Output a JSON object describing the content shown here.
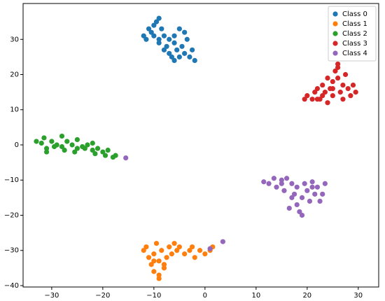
{
  "chart_data": {
    "type": "scatter",
    "xlim": [
      -35.6,
      34
    ],
    "ylim": [
      -40.4,
      40.2
    ],
    "xticks": [
      {
        "value": -30,
        "label": "−30"
      },
      {
        "value": -20,
        "label": "−20"
      },
      {
        "value": -10,
        "label": "−10"
      },
      0,
      10,
      20,
      30
    ],
    "yticks": [
      {
        "value": -40,
        "label": "−40"
      },
      {
        "value": -30,
        "label": "−30"
      },
      {
        "value": -20,
        "label": "−20"
      },
      {
        "value": -10,
        "label": "−10"
      },
      0,
      10,
      20,
      30
    ],
    "legend": "upper right",
    "series": [
      {
        "name": "Class 0",
        "color": "#1f77b4",
        "x": [
          -12,
          -11.5,
          -11,
          -10.5,
          -10,
          -9.5,
          -9,
          -9,
          -8.5,
          -8,
          -8,
          -7.5,
          -7,
          -7,
          -6.5,
          -6,
          -6,
          -5.5,
          -5,
          -5,
          -4.5,
          -4,
          -3.5,
          -3,
          -2.5,
          -2,
          -10,
          -9,
          -6,
          -4
        ],
        "values": [
          31,
          30,
          33,
          32,
          34,
          35,
          36,
          29,
          33,
          31,
          27,
          28,
          30,
          26,
          25,
          29,
          24,
          27,
          33,
          25,
          28,
          26,
          30,
          25,
          27,
          24,
          31,
          30,
          31,
          32
        ]
      },
      {
        "name": "Class 1",
        "color": "#ff7f0e",
        "x": [
          -12,
          -11.5,
          -11,
          -10.5,
          -10,
          -10,
          -9.5,
          -9,
          -9,
          -8.5,
          -8,
          -7.5,
          -7,
          -6.5,
          -6,
          -5.5,
          -5,
          -4,
          -3,
          -2.5,
          -2,
          -1,
          0,
          1,
          1.5,
          -9,
          -8,
          -10
        ],
        "values": [
          -30,
          -29,
          -32,
          -34,
          -31,
          -36,
          -28,
          -33,
          -37,
          -30,
          -35,
          -32,
          -29,
          -31,
          -28,
          -30,
          -29,
          -31,
          -30,
          -29,
          -32,
          -30,
          -31,
          -30,
          -29,
          -38,
          -34,
          -33
        ]
      },
      {
        "name": "Class 2",
        "color": "#2ca02c",
        "x": [
          -33,
          -32,
          -31.5,
          -31,
          -30,
          -29.5,
          -29,
          -28,
          -27.5,
          -27,
          -26,
          -25.5,
          -25,
          -24,
          -23.5,
          -23,
          -22,
          -21.5,
          -21,
          -20,
          -19.5,
          -19,
          -18,
          -17.5,
          -31,
          -28,
          -25,
          -22
        ],
        "values": [
          1,
          0.5,
          2,
          -1,
          1,
          -0.5,
          0,
          2.5,
          -1.5,
          1,
          0,
          -2,
          1.5,
          -0.5,
          -1,
          0,
          -1.5,
          -2.5,
          -1,
          -2,
          -3,
          -1.5,
          -3.5,
          -3,
          -2,
          -0.5,
          -1,
          0.5
        ]
      },
      {
        "name": "Class 3",
        "color": "#d62728",
        "x": [
          19.5,
          20,
          21,
          21.5,
          22,
          22.5,
          23,
          23,
          23.5,
          24,
          24.5,
          25,
          25,
          25.5,
          26,
          26,
          26.5,
          27,
          27,
          27.5,
          28,
          28.5,
          29,
          29.5,
          24,
          26,
          22,
          25
        ],
        "values": [
          13,
          14,
          13,
          15,
          16,
          13,
          14,
          17,
          15,
          12,
          16,
          18,
          14,
          21,
          23,
          19,
          15,
          17,
          13,
          20,
          16,
          14,
          17,
          15,
          19,
          22,
          13,
          16
        ]
      },
      {
        "name": "Class 4",
        "color": "#9467bd",
        "x": [
          -15.5,
          3.5,
          1,
          11.5,
          12.5,
          13.5,
          14,
          15,
          15.5,
          16,
          16.5,
          17,
          17.5,
          18,
          18,
          18.5,
          19,
          19,
          19.5,
          20,
          20.5,
          21,
          21.5,
          22,
          22.5,
          23,
          23.5,
          17,
          15,
          21
        ],
        "values": [
          -3.7,
          -27.5,
          -29.5,
          -10.5,
          -11,
          -9.5,
          -12,
          -10,
          -13,
          -9.5,
          -18,
          -11,
          -14,
          -12,
          -17,
          -19,
          -15,
          -20,
          -11,
          -13,
          -16,
          -10.5,
          -14,
          -12,
          -16,
          -14,
          -11,
          -15,
          -11,
          -12
        ]
      }
    ]
  }
}
